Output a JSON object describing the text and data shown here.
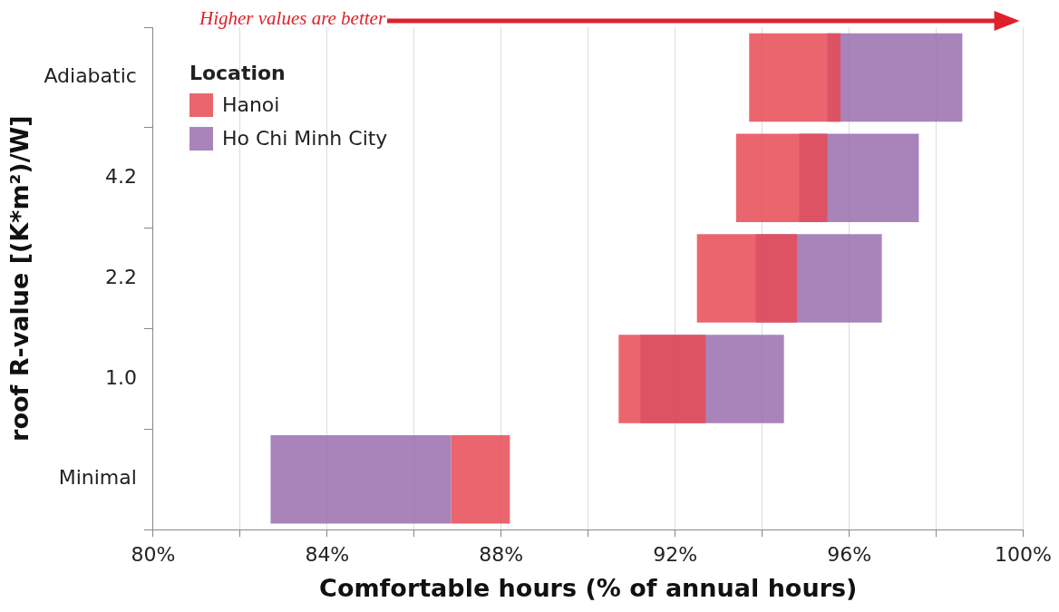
{
  "chart_data": {
    "type": "bar",
    "orientation": "horizontal",
    "xlabel": "Comfortable hours (% of annual hours)",
    "ylabel": "roof R-value [(K*m²)/W]",
    "legend_title": "Location",
    "legend": "top left",
    "grid": "x",
    "categories": [
      "Adiabatic",
      "4.2",
      "2.2",
      "1.0",
      "Minimal"
    ],
    "series": [
      {
        "name": "Hanoi",
        "color": "#e84a55",
        "base": [
          93.7,
          93.4,
          92.5,
          90.7,
          86.85
        ],
        "values": [
          2.1,
          2.1,
          2.3,
          2.0,
          1.35
        ]
      },
      {
        "name": "Ho Chi Minh City",
        "color": "#9a6fae",
        "base": [
          95.5,
          94.85,
          93.85,
          91.2,
          82.7
        ],
        "values": [
          3.1,
          2.75,
          2.9,
          3.3,
          4.15
        ]
      }
    ],
    "xlim": [
      80,
      100
    ],
    "xticks": [
      {
        "value": 80,
        "label": "80%"
      },
      {
        "value": 82,
        "label": null
      },
      {
        "value": 84,
        "label": "84%"
      },
      {
        "value": 86,
        "label": null
      },
      {
        "value": 88,
        "label": "88%"
      },
      {
        "value": 90,
        "label": null
      },
      {
        "value": 92,
        "label": "92%"
      },
      {
        "value": 94,
        "label": null
      },
      {
        "value": 96,
        "label": "96%"
      },
      {
        "value": 98,
        "label": null
      },
      {
        "value": 100,
        "label": "100%"
      }
    ],
    "annotations": [
      "Higher values are better"
    ]
  }
}
